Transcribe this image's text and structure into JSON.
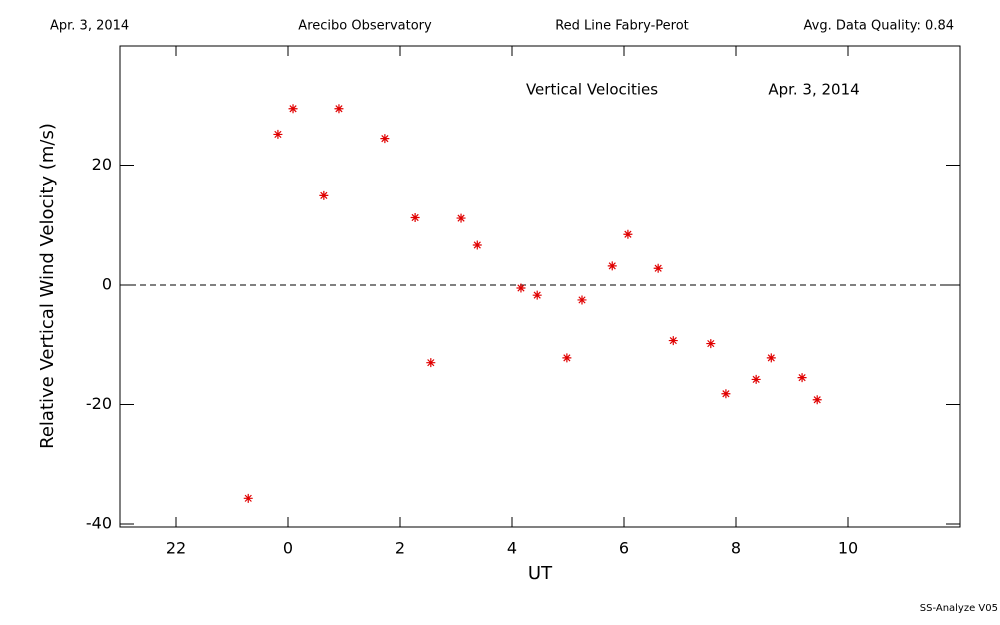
{
  "chart_data": {
    "type": "scatter",
    "header": [
      "Apr. 3, 2014",
      "Arecibo Observatory",
      "Red Line Fabry-Perot",
      "Avg. Data Quality: 0.84"
    ],
    "annotations": [
      "Vertical Velocities",
      "Apr. 3, 2014"
    ],
    "footer": "SS-Analyze V05",
    "xlabel": "UT",
    "ylabel": "Relative Vertical Wind Velocity (m/s)",
    "x": [
      -0.71,
      -0.18,
      0.09,
      0.64,
      0.91,
      1.73,
      2.27,
      2.55,
      3.09,
      3.38,
      4.16,
      4.45,
      4.98,
      5.25,
      5.79,
      6.07,
      6.61,
      6.88,
      7.55,
      7.82,
      8.36,
      8.63,
      9.18,
      9.45
    ],
    "values": [
      -35.7,
      25.2,
      29.5,
      15.0,
      29.5,
      24.5,
      11.3,
      -13.0,
      11.2,
      6.7,
      -0.5,
      -1.7,
      -12.2,
      -2.5,
      3.2,
      8.5,
      2.8,
      -9.3,
      -9.8,
      -18.2,
      -15.8,
      -12.2,
      -15.5,
      -19.2
    ],
    "color": "#e00000",
    "xlim": [
      -3,
      12
    ],
    "ylim": [
      -40.5,
      40
    ],
    "xticks": [
      {
        "value": -2,
        "label": "22"
      },
      0,
      2,
      4,
      6,
      8,
      10
    ],
    "yticks": [
      -40,
      -20,
      0,
      20
    ],
    "zero_line": true
  }
}
